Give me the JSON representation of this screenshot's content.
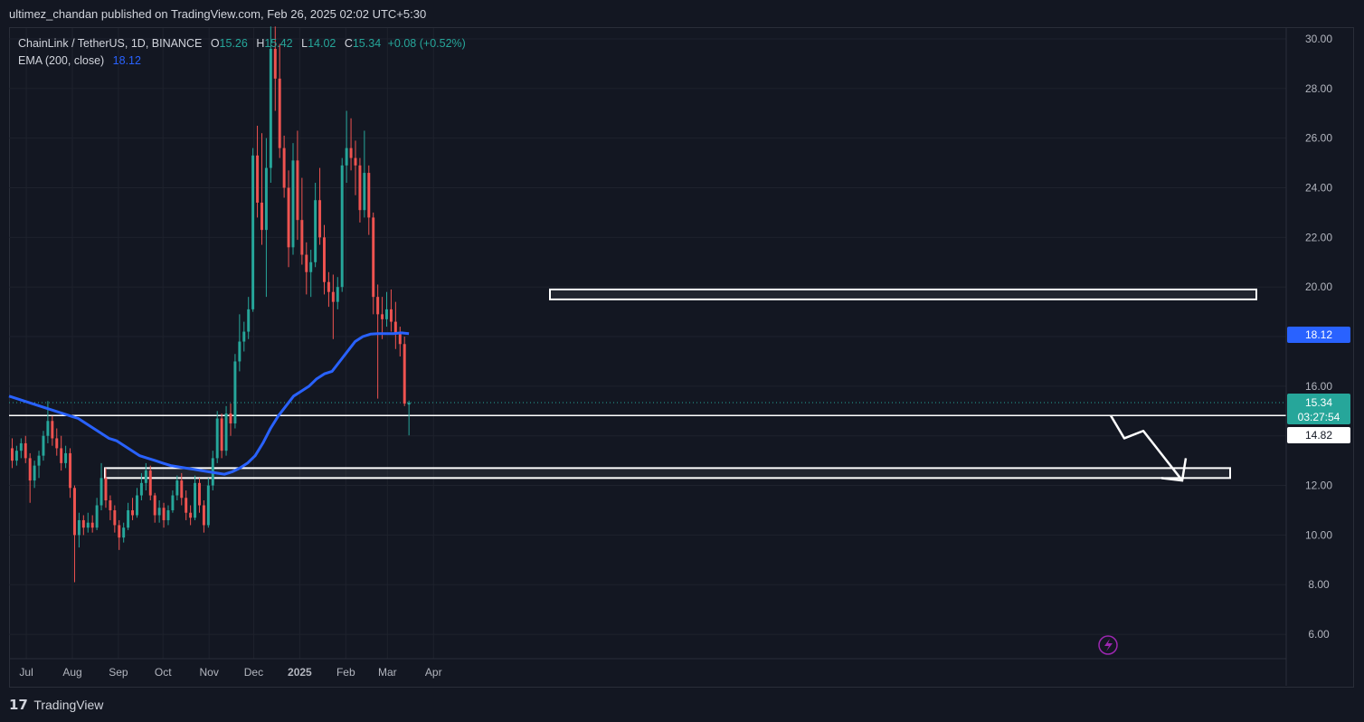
{
  "header": {
    "published": "ultimez_chandan published on TradingView.com, Feb 26, 2025 02:02 UTC+5:30"
  },
  "legend": {
    "symbol": "ChainLink / TetherUS, 1D, BINANCE",
    "open_label": "O",
    "open": "15.26",
    "high_label": "H",
    "high": "15.42",
    "low_label": "L",
    "low": "14.02",
    "close_label": "C",
    "close": "15.34",
    "change": "+0.08 (+0.52%)",
    "ema_label": "EMA (200, close)",
    "ema_value": "18.12"
  },
  "price_labels": {
    "ema": "18.12",
    "last": "15.34",
    "countdown": "03:27:54",
    "line": "14.82"
  },
  "footer": {
    "logo": "𝟭𝟳",
    "brand": "TradingView"
  },
  "colors": {
    "up": "#26a69a",
    "down": "#ef5350",
    "ema": "#2962ff",
    "bg": "#131722",
    "grid": "#1e222d"
  },
  "chart_data": {
    "type": "candlestick",
    "yaxis": {
      "ticks": [
        "30.00",
        "28.00",
        "26.00",
        "24.00",
        "22.00",
        "20.00",
        "18.00",
        "16.00",
        "14.00",
        "12.00",
        "10.00",
        "8.00",
        "6.00"
      ],
      "range": [
        5.0,
        30.5
      ]
    },
    "xaxis": {
      "ticks": [
        "Jul",
        "Aug",
        "Sep",
        "Oct",
        "Nov",
        "Dec",
        "2025",
        "Feb",
        "Mar",
        "Apr"
      ]
    },
    "series": [
      {
        "name": "ChainLink / TetherUS, 1D, BINANCE",
        "kind": "ohlc",
        "step_days": 3,
        "start": "2024-06-20",
        "ohlc": [
          [
            13.5,
            13.9,
            12.7,
            13.0
          ],
          [
            13.0,
            13.6,
            12.8,
            13.4
          ],
          [
            13.4,
            13.9,
            13.1,
            13.7
          ],
          [
            13.7,
            14.0,
            12.9,
            13.1
          ],
          [
            13.1,
            13.3,
            11.3,
            12.2
          ],
          [
            12.2,
            13.0,
            11.9,
            12.8
          ],
          [
            12.8,
            13.4,
            12.3,
            13.2
          ],
          [
            13.2,
            14.2,
            13.0,
            14.0
          ],
          [
            14.0,
            15.4,
            13.7,
            14.6
          ],
          [
            14.6,
            14.8,
            13.6,
            13.9
          ],
          [
            13.9,
            14.3,
            13.2,
            13.5
          ],
          [
            13.5,
            14.0,
            12.6,
            12.9
          ],
          [
            12.9,
            13.6,
            12.7,
            13.3
          ],
          [
            13.3,
            13.5,
            11.5,
            11.9
          ],
          [
            11.9,
            12.0,
            8.1,
            10.0
          ],
          [
            10.0,
            10.9,
            9.5,
            10.6
          ],
          [
            10.6,
            10.8,
            10.0,
            10.3
          ],
          [
            10.3,
            10.9,
            10.1,
            10.5
          ],
          [
            10.5,
            10.8,
            10.1,
            10.3
          ],
          [
            10.3,
            11.5,
            10.2,
            11.2
          ],
          [
            11.2,
            12.9,
            11.0,
            12.3
          ],
          [
            12.3,
            12.7,
            11.1,
            11.4
          ],
          [
            11.4,
            11.6,
            10.6,
            11.0
          ],
          [
            11.0,
            11.2,
            10.1,
            10.4
          ],
          [
            10.4,
            10.6,
            9.4,
            9.9
          ],
          [
            9.9,
            10.5,
            9.7,
            10.3
          ],
          [
            10.3,
            11.3,
            10.2,
            11.0
          ],
          [
            11.0,
            11.5,
            10.6,
            10.8
          ],
          [
            10.8,
            11.9,
            10.7,
            11.6
          ],
          [
            11.6,
            12.5,
            11.4,
            12.1
          ],
          [
            12.1,
            12.9,
            11.8,
            12.6
          ],
          [
            12.6,
            12.8,
            11.4,
            11.6
          ],
          [
            11.6,
            11.7,
            10.5,
            10.8
          ],
          [
            10.8,
            11.4,
            10.5,
            11.1
          ],
          [
            11.1,
            11.3,
            10.3,
            10.6
          ],
          [
            10.6,
            11.2,
            10.4,
            11.0
          ],
          [
            11.0,
            11.8,
            10.9,
            11.6
          ],
          [
            11.6,
            12.4,
            11.4,
            12.2
          ],
          [
            12.2,
            12.5,
            11.2,
            11.5
          ],
          [
            11.5,
            11.8,
            10.6,
            10.9
          ],
          [
            10.9,
            11.2,
            10.4,
            10.7
          ],
          [
            10.7,
            12.4,
            10.6,
            12.1
          ],
          [
            12.1,
            12.3,
            10.9,
            11.2
          ],
          [
            11.2,
            11.4,
            10.1,
            10.4
          ],
          [
            10.4,
            12.3,
            10.3,
            12.0
          ],
          [
            12.0,
            13.4,
            11.8,
            13.1
          ],
          [
            13.1,
            15.0,
            12.9,
            14.7
          ],
          [
            14.7,
            14.9,
            13.1,
            13.4
          ],
          [
            13.4,
            15.2,
            13.2,
            14.9
          ],
          [
            14.9,
            15.3,
            14.0,
            14.5
          ],
          [
            14.5,
            17.3,
            14.3,
            17.0
          ],
          [
            17.0,
            18.9,
            16.6,
            17.8
          ],
          [
            17.8,
            18.6,
            17.4,
            18.2
          ],
          [
            18.2,
            19.6,
            17.9,
            19.1
          ],
          [
            19.1,
            25.6,
            19.0,
            25.3
          ],
          [
            25.3,
            26.5,
            22.8,
            23.4
          ],
          [
            23.4,
            26.2,
            21.7,
            22.3
          ],
          [
            22.3,
            26.0,
            19.6,
            24.8
          ],
          [
            24.8,
            30.5,
            24.2,
            29.6
          ],
          [
            29.6,
            30.5,
            27.1,
            28.4
          ],
          [
            28.4,
            29.8,
            25.2,
            25.6
          ],
          [
            25.6,
            26.1,
            23.6,
            24.0
          ],
          [
            24.0,
            24.7,
            20.8,
            21.6
          ],
          [
            21.6,
            25.8,
            21.3,
            25.1
          ],
          [
            25.1,
            26.3,
            21.9,
            22.7
          ],
          [
            22.7,
            24.4,
            20.9,
            21.3
          ],
          [
            21.3,
            21.8,
            19.7,
            20.6
          ],
          [
            20.6,
            21.5,
            19.6,
            21.0
          ],
          [
            21.0,
            24.2,
            20.8,
            23.5
          ],
          [
            23.5,
            24.8,
            21.7,
            22.0
          ],
          [
            22.0,
            22.5,
            19.7,
            20.2
          ],
          [
            20.2,
            20.6,
            19.2,
            19.8
          ],
          [
            19.8,
            20.5,
            17.9,
            19.4
          ],
          [
            19.4,
            20.4,
            19.1,
            20.0
          ],
          [
            20.0,
            25.2,
            19.8,
            24.9
          ],
          [
            24.9,
            27.1,
            24.2,
            25.6
          ],
          [
            25.6,
            26.8,
            24.7,
            25.2
          ],
          [
            25.2,
            25.9,
            23.7,
            24.9
          ],
          [
            24.9,
            25.2,
            22.6,
            23.1
          ],
          [
            23.1,
            26.3,
            22.8,
            24.6
          ],
          [
            24.6,
            24.9,
            22.1,
            22.8
          ],
          [
            22.8,
            23.0,
            18.9,
            19.6
          ],
          [
            19.6,
            20.1,
            15.5,
            18.9
          ],
          [
            18.9,
            19.6,
            17.9,
            18.7
          ],
          [
            18.7,
            19.8,
            18.4,
            19.1
          ],
          [
            19.1,
            19.9,
            18.2,
            18.6
          ],
          [
            18.6,
            19.4,
            17.5,
            18.1
          ],
          [
            18.1,
            18.4,
            17.2,
            17.7
          ],
          [
            17.7,
            18.0,
            15.2,
            15.3
          ],
          [
            15.26,
            15.42,
            14.02,
            15.34
          ]
        ]
      },
      {
        "name": "EMA (200, close)",
        "kind": "line",
        "values": [
          15.6,
          15.5,
          15.4,
          15.3,
          15.2,
          15.1,
          15.0,
          14.9,
          14.8,
          14.7,
          14.5,
          14.3,
          14.1,
          13.9,
          13.8,
          13.6,
          13.4,
          13.2,
          13.1,
          13.0,
          12.9,
          12.8,
          12.75,
          12.7,
          12.65,
          12.6,
          12.55,
          12.5,
          12.45,
          12.55,
          12.7,
          12.9,
          13.2,
          13.7,
          14.3,
          14.8,
          15.2,
          15.6,
          15.8,
          16.0,
          16.3,
          16.5,
          16.6,
          17.0,
          17.4,
          17.8,
          18.0,
          18.1,
          18.12,
          18.12,
          18.12,
          18.15,
          18.12
        ]
      }
    ],
    "levels": [
      {
        "kind": "zone",
        "y": [
          19.5,
          19.9
        ]
      },
      {
        "kind": "line",
        "y": 14.82
      },
      {
        "kind": "zone",
        "y": [
          12.3,
          12.7
        ]
      }
    ]
  }
}
